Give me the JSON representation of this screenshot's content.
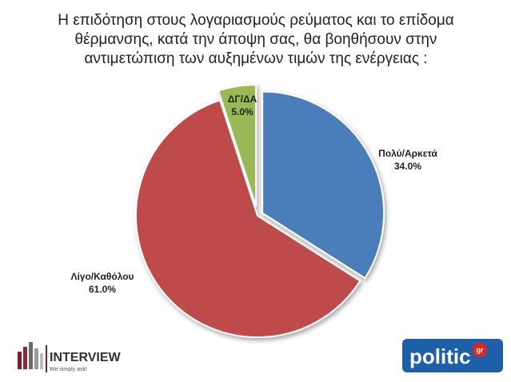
{
  "chart_data": {
    "type": "pie",
    "title": "Η επιδότηση στους λογαριασμούς ρεύματος και το επίδομα θέρμανσης, κατά την άποψη σας, θα βοηθήσουν στην αντιμετώπιση των αυξημένων τιμών της ενέργειας :",
    "categories": [
      "Πολύ/Αρκετά",
      "Λίγο/Καθόλου",
      "ΔΓ/ΔΑ"
    ],
    "values": [
      34,
      61,
      5
    ],
    "value_labels": [
      "34.0%",
      "61.0%",
      "5.0%"
    ],
    "colors": [
      "#4a7ebb",
      "#be4b48",
      "#98b954"
    ]
  },
  "footer": {
    "left_logo": "INTERVIEW",
    "left_tagline": "We simply ask!",
    "right_logo": "politic",
    "right_logo_suffix": "gr"
  }
}
